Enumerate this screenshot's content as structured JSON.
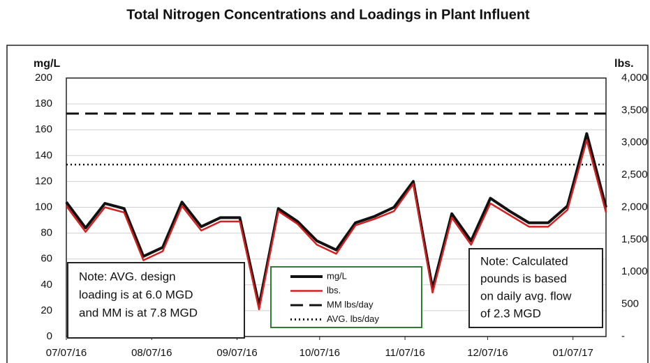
{
  "chart_data": {
    "type": "line",
    "title": "Total Nitrogen Concentrations and Loadings in Plant Influent",
    "y_label": "mg/L",
    "y2_label": "lbs.",
    "x": [
      "07/07/16",
      "07/14/16",
      "07/21/16",
      "07/28/16",
      "08/04/16",
      "08/11/16",
      "08/18/16",
      "08/25/16",
      "09/01/16",
      "09/08/16",
      "09/15/16",
      "09/22/16",
      "09/29/16",
      "10/06/16",
      "10/13/16",
      "10/20/16",
      "10/27/16",
      "11/03/16",
      "11/10/16",
      "11/17/16",
      "11/24/16",
      "12/01/16",
      "12/08/16",
      "12/15/16",
      "12/22/16",
      "12/29/16",
      "01/05/17",
      "01/12/17",
      "01/19/17"
    ],
    "xlim": [
      "07/07/16",
      "01/19/17"
    ],
    "xticks": [
      "07/07/16",
      "08/07/16",
      "09/07/16",
      "10/07/16",
      "11/07/16",
      "12/07/16",
      "01/07/17"
    ],
    "ylim": [
      0,
      200
    ],
    "yticks": [
      0,
      20,
      40,
      60,
      80,
      100,
      120,
      140,
      160,
      180,
      200
    ],
    "y2lim": [
      0,
      4000
    ],
    "y2ticks": [
      {
        "value": 0,
        "label": "-"
      },
      500,
      {
        "value": 1000,
        "label": "1,000"
      },
      {
        "value": 1500,
        "label": "1,500"
      },
      {
        "value": 2000,
        "label": "2,000"
      },
      {
        "value": 2500,
        "label": "2,500"
      },
      {
        "value": 3000,
        "label": "3,000"
      },
      {
        "value": 3500,
        "label": "3,500"
      },
      {
        "value": 4000,
        "label": "4,000"
      }
    ],
    "grid": true,
    "series": [
      {
        "name": "mg/L",
        "color": "#111111",
        "values": [
          104,
          84,
          103,
          99,
          62,
          69,
          104,
          85,
          92,
          92,
          24,
          99,
          89,
          74,
          67,
          88,
          93,
          100,
          120,
          37,
          95,
          74,
          107,
          97,
          88,
          88,
          101,
          157,
          100
        ]
      },
      {
        "name": "lbs.",
        "color": "#d42020",
        "axis": "y2",
        "values": [
          2020,
          1620,
          2000,
          1920,
          1180,
          1320,
          2020,
          1640,
          1780,
          1780,
          420,
          1940,
          1740,
          1420,
          1280,
          1720,
          1820,
          1940,
          2360,
          680,
          1840,
          1420,
          2060,
          1880,
          1700,
          1700,
          1960,
          3040,
          1920
        ]
      }
    ],
    "reference_lines": [
      {
        "name": "MM lbs/day",
        "value": 3450,
        "axis": "y2",
        "style": "dashed",
        "color": "#111111"
      },
      {
        "name": "AVG. lbs/day",
        "value": 2660,
        "axis": "y2",
        "style": "dotted",
        "color": "#111111"
      }
    ],
    "annotations": [
      {
        "lines": [
          "Note: AVG. design",
          "loading is at 6.0 MGD",
          "and MM is at 7.8 MGD"
        ]
      },
      {
        "lines": [
          "Note: Calculated",
          "pounds is based",
          "on daily avg. flow",
          "of 2.3 MGD"
        ]
      }
    ]
  }
}
